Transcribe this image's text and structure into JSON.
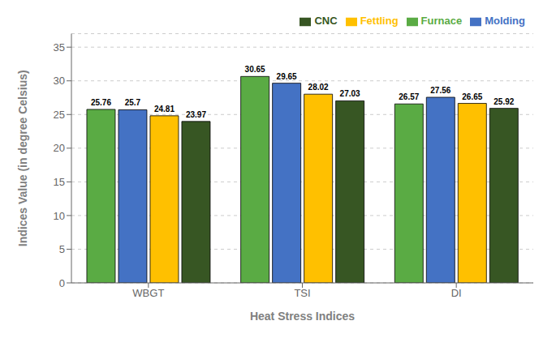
{
  "chart_data": {
    "type": "bar",
    "categories": [
      "WBGT",
      "TSI",
      "DI"
    ],
    "series": [
      {
        "name": "Furnace",
        "color": "#5AAB44",
        "values": [
          25.76,
          30.65,
          26.57
        ]
      },
      {
        "name": "Molding",
        "color": "#4472C4",
        "values": [
          25.7,
          29.65,
          27.56
        ]
      },
      {
        "name": "Fettling",
        "color": "#FFC000",
        "values": [
          24.81,
          28.02,
          26.65
        ]
      },
      {
        "name": "CNC",
        "color": "#375623",
        "values": [
          23.97,
          27.03,
          25.92
        ]
      }
    ],
    "xlabel": "Heat Stress Indices",
    "ylabel": "Indices Value (in degree Celsius)",
    "ylim": [
      0,
      37
    ],
    "yticks": [
      0,
      5,
      10,
      15,
      20,
      25,
      30,
      35
    ],
    "grid": true,
    "legend": "upper right",
    "data_labels": true
  }
}
